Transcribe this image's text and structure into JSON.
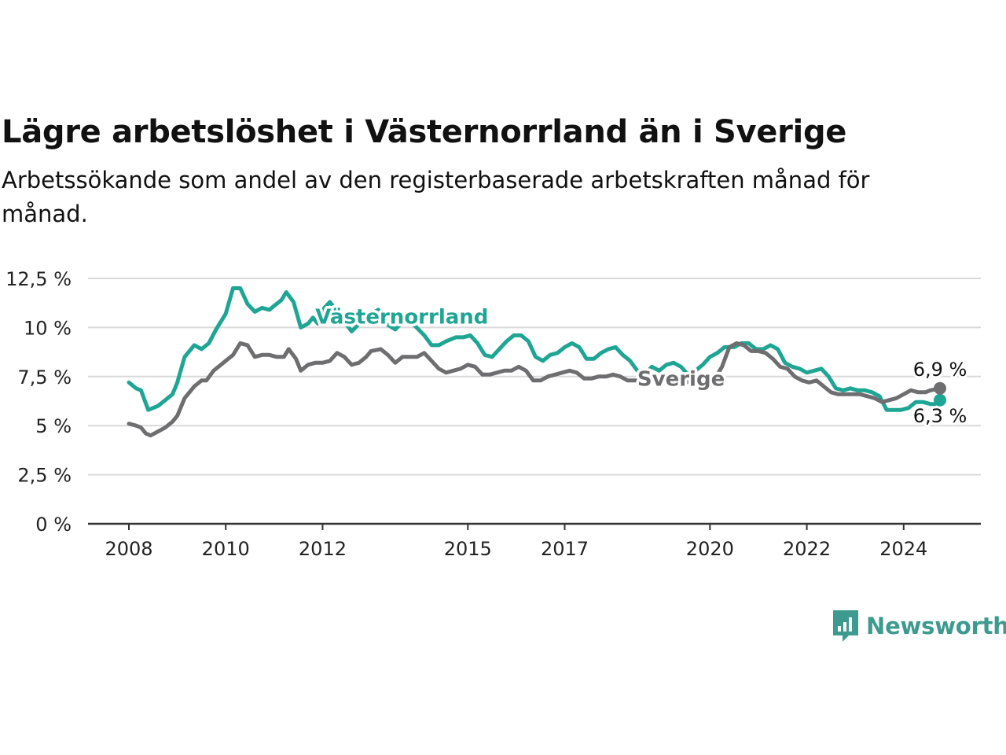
{
  "title": "Lägre arbetslöshet i Västernorrland än i Sverige",
  "subtitle": "Arbetssökande som andel av den registerbaserade arbetskraften månad för månad.",
  "brand": {
    "name": "Newsworthy",
    "color": "#3d9a8f",
    "icon": "newsworthy-bar-chart-icon"
  },
  "chart_data": {
    "type": "line",
    "y_ticks": [
      "0 %",
      "2,5 %",
      "5 %",
      "7,5 %",
      "10 %",
      "12,5 %"
    ],
    "y_tick_values": [
      0,
      2.5,
      5,
      7.5,
      10,
      12.5
    ],
    "ylim": [
      0,
      12.5
    ],
    "x_ticks": [
      "2008",
      "2010",
      "2012",
      "2015",
      "2017",
      "2020",
      "2022",
      "2024"
    ],
    "x_tick_values": [
      2008,
      2010,
      2012,
      2015,
      2017,
      2020,
      2022,
      2024
    ],
    "xlim": [
      2008,
      2024.75
    ],
    "grid": true,
    "series": [
      {
        "name": "Västernorrland",
        "color": "#1ea593",
        "end_label": "6,3 %",
        "points": [
          [
            2008.0,
            7.2
          ],
          [
            2008.15,
            6.9
          ],
          [
            2008.25,
            6.8
          ],
          [
            2008.4,
            5.8
          ],
          [
            2008.6,
            6.0
          ],
          [
            2008.75,
            6.3
          ],
          [
            2008.9,
            6.6
          ],
          [
            2009.0,
            7.2
          ],
          [
            2009.15,
            8.5
          ],
          [
            2009.35,
            9.1
          ],
          [
            2009.5,
            8.9
          ],
          [
            2009.65,
            9.2
          ],
          [
            2009.8,
            9.9
          ],
          [
            2010.0,
            10.7
          ],
          [
            2010.15,
            12.0
          ],
          [
            2010.3,
            12.0
          ],
          [
            2010.45,
            11.2
          ],
          [
            2010.6,
            10.8
          ],
          [
            2010.75,
            11.0
          ],
          [
            2010.9,
            10.9
          ],
          [
            2011.0,
            11.1
          ],
          [
            2011.15,
            11.4
          ],
          [
            2011.25,
            11.8
          ],
          [
            2011.4,
            11.3
          ],
          [
            2011.55,
            10.0
          ],
          [
            2011.7,
            10.2
          ],
          [
            2011.8,
            10.5
          ],
          [
            2011.9,
            10.2
          ],
          [
            2012.0,
            10.9
          ],
          [
            2012.15,
            11.3
          ],
          [
            2012.3,
            10.8
          ],
          [
            2012.45,
            10.3
          ],
          [
            2012.6,
            9.8
          ],
          [
            2012.8,
            10.3
          ],
          [
            2013.0,
            10.7
          ],
          [
            2013.15,
            10.9
          ],
          [
            2013.3,
            10.2
          ],
          [
            2013.5,
            9.9
          ],
          [
            2013.7,
            10.4
          ],
          [
            2013.9,
            10.1
          ],
          [
            2014.1,
            9.6
          ],
          [
            2014.25,
            9.1
          ],
          [
            2014.4,
            9.1
          ],
          [
            2014.55,
            9.3
          ],
          [
            2014.75,
            9.5
          ],
          [
            2014.9,
            9.5
          ],
          [
            2015.05,
            9.6
          ],
          [
            2015.2,
            9.2
          ],
          [
            2015.35,
            8.6
          ],
          [
            2015.5,
            8.5
          ],
          [
            2015.65,
            8.9
          ],
          [
            2015.8,
            9.3
          ],
          [
            2015.95,
            9.6
          ],
          [
            2016.1,
            9.6
          ],
          [
            2016.25,
            9.3
          ],
          [
            2016.4,
            8.5
          ],
          [
            2016.55,
            8.3
          ],
          [
            2016.7,
            8.6
          ],
          [
            2016.85,
            8.7
          ],
          [
            2017.0,
            9.0
          ],
          [
            2017.15,
            9.2
          ],
          [
            2017.3,
            9.0
          ],
          [
            2017.45,
            8.4
          ],
          [
            2017.6,
            8.4
          ],
          [
            2017.75,
            8.7
          ],
          [
            2017.9,
            8.9
          ],
          [
            2018.05,
            9.0
          ],
          [
            2018.2,
            8.6
          ],
          [
            2018.35,
            8.3
          ],
          [
            2018.5,
            7.8
          ],
          [
            2018.65,
            7.6
          ],
          [
            2018.8,
            8.0
          ],
          [
            2018.95,
            7.8
          ],
          [
            2019.1,
            8.1
          ],
          [
            2019.25,
            8.2
          ],
          [
            2019.4,
            8.0
          ],
          [
            2019.55,
            7.6
          ],
          [
            2019.7,
            7.8
          ],
          [
            2019.85,
            8.1
          ],
          [
            2020.0,
            8.5
          ],
          [
            2020.15,
            8.7
          ],
          [
            2020.3,
            9.0
          ],
          [
            2020.5,
            9.0
          ],
          [
            2020.65,
            9.2
          ],
          [
            2020.8,
            9.2
          ],
          [
            2020.95,
            8.9
          ],
          [
            2021.1,
            8.9
          ],
          [
            2021.25,
            9.1
          ],
          [
            2021.4,
            8.9
          ],
          [
            2021.55,
            8.2
          ],
          [
            2021.7,
            8.0
          ],
          [
            2021.85,
            7.9
          ],
          [
            2022.0,
            7.7
          ],
          [
            2022.15,
            7.8
          ],
          [
            2022.3,
            7.9
          ],
          [
            2022.45,
            7.5
          ],
          [
            2022.6,
            6.9
          ],
          [
            2022.75,
            6.8
          ],
          [
            2022.9,
            6.9
          ],
          [
            2023.05,
            6.8
          ],
          [
            2023.2,
            6.8
          ],
          [
            2023.35,
            6.7
          ],
          [
            2023.5,
            6.5
          ],
          [
            2023.65,
            5.8
          ],
          [
            2023.8,
            5.8
          ],
          [
            2023.95,
            5.8
          ],
          [
            2024.1,
            5.9
          ],
          [
            2024.25,
            6.2
          ],
          [
            2024.4,
            6.2
          ],
          [
            2024.55,
            6.1
          ],
          [
            2024.65,
            6.1
          ],
          [
            2024.75,
            6.3
          ]
        ]
      },
      {
        "name": "Sverige",
        "color": "#6e6e70",
        "end_label": "6,9 %",
        "points": [
          [
            2008.0,
            5.1
          ],
          [
            2008.15,
            5.0
          ],
          [
            2008.25,
            4.9
          ],
          [
            2008.35,
            4.6
          ],
          [
            2008.45,
            4.5
          ],
          [
            2008.6,
            4.7
          ],
          [
            2008.75,
            4.9
          ],
          [
            2008.9,
            5.2
          ],
          [
            2009.0,
            5.5
          ],
          [
            2009.15,
            6.4
          ],
          [
            2009.35,
            7.0
          ],
          [
            2009.5,
            7.3
          ],
          [
            2009.6,
            7.3
          ],
          [
            2009.75,
            7.8
          ],
          [
            2009.9,
            8.1
          ],
          [
            2010.0,
            8.3
          ],
          [
            2010.15,
            8.6
          ],
          [
            2010.3,
            9.2
          ],
          [
            2010.45,
            9.1
          ],
          [
            2010.6,
            8.5
          ],
          [
            2010.75,
            8.6
          ],
          [
            2010.9,
            8.6
          ],
          [
            2011.05,
            8.5
          ],
          [
            2011.2,
            8.5
          ],
          [
            2011.3,
            8.9
          ],
          [
            2011.45,
            8.4
          ],
          [
            2011.55,
            7.8
          ],
          [
            2011.7,
            8.1
          ],
          [
            2011.85,
            8.2
          ],
          [
            2012.0,
            8.2
          ],
          [
            2012.15,
            8.3
          ],
          [
            2012.3,
            8.7
          ],
          [
            2012.45,
            8.5
          ],
          [
            2012.6,
            8.1
          ],
          [
            2012.75,
            8.2
          ],
          [
            2012.9,
            8.5
          ],
          [
            2013.0,
            8.8
          ],
          [
            2013.2,
            8.9
          ],
          [
            2013.35,
            8.6
          ],
          [
            2013.5,
            8.2
          ],
          [
            2013.65,
            8.5
          ],
          [
            2013.8,
            8.5
          ],
          [
            2013.95,
            8.5
          ],
          [
            2014.1,
            8.7
          ],
          [
            2014.25,
            8.3
          ],
          [
            2014.4,
            7.9
          ],
          [
            2014.55,
            7.7
          ],
          [
            2014.7,
            7.8
          ],
          [
            2014.85,
            7.9
          ],
          [
            2015.0,
            8.1
          ],
          [
            2015.15,
            8.0
          ],
          [
            2015.3,
            7.6
          ],
          [
            2015.45,
            7.6
          ],
          [
            2015.6,
            7.7
          ],
          [
            2015.75,
            7.8
          ],
          [
            2015.9,
            7.8
          ],
          [
            2016.05,
            8.0
          ],
          [
            2016.2,
            7.8
          ],
          [
            2016.35,
            7.3
          ],
          [
            2016.5,
            7.3
          ],
          [
            2016.65,
            7.5
          ],
          [
            2016.8,
            7.6
          ],
          [
            2016.95,
            7.7
          ],
          [
            2017.1,
            7.8
          ],
          [
            2017.25,
            7.7
          ],
          [
            2017.4,
            7.4
          ],
          [
            2017.55,
            7.4
          ],
          [
            2017.7,
            7.5
          ],
          [
            2017.85,
            7.5
          ],
          [
            2018.0,
            7.6
          ],
          [
            2018.15,
            7.5
          ],
          [
            2018.3,
            7.3
          ],
          [
            2018.45,
            7.3
          ],
          [
            2018.6,
            7.3
          ],
          [
            2018.75,
            7.4
          ],
          [
            2018.9,
            7.3
          ],
          [
            2019.05,
            7.2
          ],
          [
            2019.2,
            7.3
          ],
          [
            2019.35,
            7.3
          ],
          [
            2019.5,
            7.2
          ],
          [
            2019.65,
            7.3
          ],
          [
            2019.8,
            7.4
          ],
          [
            2019.95,
            7.3
          ],
          [
            2020.1,
            7.4
          ],
          [
            2020.25,
            8.0
          ],
          [
            2020.4,
            9.0
          ],
          [
            2020.55,
            9.2
          ],
          [
            2020.7,
            9.1
          ],
          [
            2020.85,
            8.8
          ],
          [
            2021.0,
            8.8
          ],
          [
            2021.15,
            8.7
          ],
          [
            2021.3,
            8.4
          ],
          [
            2021.45,
            8.0
          ],
          [
            2021.6,
            7.9
          ],
          [
            2021.75,
            7.5
          ],
          [
            2021.9,
            7.3
          ],
          [
            2022.05,
            7.2
          ],
          [
            2022.2,
            7.3
          ],
          [
            2022.35,
            7.0
          ],
          [
            2022.5,
            6.7
          ],
          [
            2022.65,
            6.6
          ],
          [
            2022.8,
            6.6
          ],
          [
            2022.95,
            6.6
          ],
          [
            2023.1,
            6.6
          ],
          [
            2023.25,
            6.5
          ],
          [
            2023.4,
            6.4
          ],
          [
            2023.55,
            6.2
          ],
          [
            2023.7,
            6.3
          ],
          [
            2023.85,
            6.4
          ],
          [
            2024.0,
            6.6
          ],
          [
            2024.15,
            6.8
          ],
          [
            2024.3,
            6.7
          ],
          [
            2024.45,
            6.7
          ],
          [
            2024.55,
            6.8
          ],
          [
            2024.75,
            6.9
          ]
        ]
      }
    ]
  }
}
